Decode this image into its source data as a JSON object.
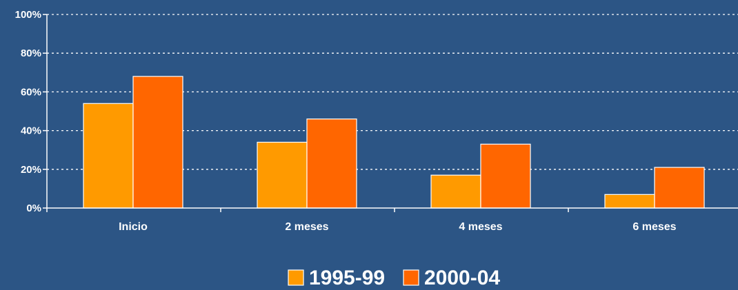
{
  "chart_data": {
    "type": "bar",
    "title": "",
    "xlabel": "",
    "ylabel": "",
    "categories": [
      "Inicio",
      "2 meses",
      "4 meses",
      "6 meses"
    ],
    "series": [
      {
        "name": "1995-99",
        "color": "#ff9a00",
        "values": [
          54,
          34,
          17,
          7
        ]
      },
      {
        "name": "2000-04",
        "color": "#ff6600",
        "values": [
          68,
          46,
          33,
          21
        ]
      }
    ],
    "ylim": [
      0,
      100
    ],
    "yticks": [
      0,
      20,
      40,
      60,
      80,
      100
    ],
    "ytick_labels": [
      "0%",
      "20%",
      "40%",
      "60%",
      "80%",
      "100%"
    ],
    "grid": true,
    "legend_position": "bottom"
  },
  "colors": {
    "background": "#2c5585",
    "axis": "#ffffff",
    "bar_border": "#ffffff"
  }
}
